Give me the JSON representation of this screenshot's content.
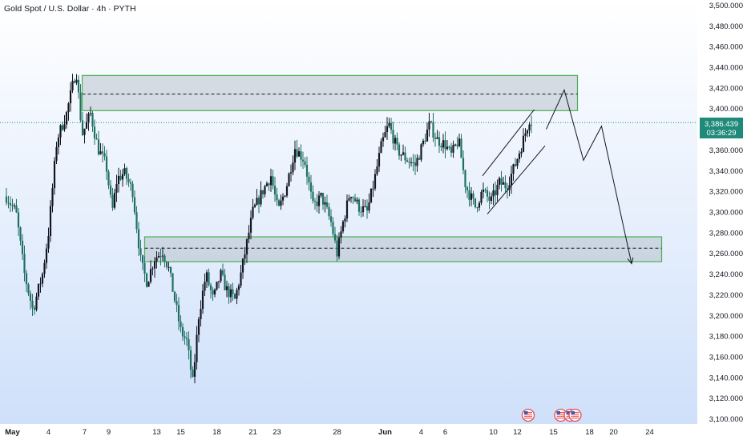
{
  "header": {
    "title": "Gold Spot / U.S. Dollar · 4h · PYTH"
  },
  "price_label": {
    "price": "3,386.439",
    "countdown": "03:36:29"
  },
  "colors": {
    "bullish": "#131722",
    "bearish": "#1f6f62",
    "zone_fill": "#b8c2cc",
    "zone_border": "#4caf50",
    "price_badge": "#1f8a7a",
    "background_top": "#ffffff",
    "background_bottom": "#cfe0fa",
    "projection": "#131722",
    "event_flag": "#e54a50"
  },
  "chart_data": {
    "type": "candlestick",
    "title": "Gold Spot / U.S. Dollar · 4h · PYTH",
    "ylim": [
      3095,
      3505
    ],
    "y_ticks": [
      3100,
      3120,
      3140,
      3160,
      3180,
      3200,
      3220,
      3240,
      3260,
      3280,
      3300,
      3320,
      3340,
      3360,
      3380,
      3400,
      3420,
      3440,
      3460,
      3480,
      3500
    ],
    "y_tick_labels": [
      "3,100.000",
      "3,120.000",
      "3,140.000",
      "3,160.000",
      "3,180.000",
      "3,200.000",
      "3,220.000",
      "3,240.000",
      "3,260.000",
      "3,280.000",
      "3,300.000",
      "3,320.000",
      "3,340.000",
      "3,360.000",
      "3,380.000",
      "3,400.000",
      "3,420.000",
      "3,440.000",
      "3,460.000",
      "3,480.000",
      "3,500.000"
    ],
    "x_domain_days": [
      0,
      55
    ],
    "x_ticks": [
      {
        "day": 0.5,
        "label": "May",
        "bold": true
      },
      {
        "day": 3.5,
        "label": "4",
        "bold": false
      },
      {
        "day": 6.5,
        "label": "7",
        "bold": false
      },
      {
        "day": 8.5,
        "label": "9",
        "bold": false
      },
      {
        "day": 12.5,
        "label": "13",
        "bold": false
      },
      {
        "day": 14.5,
        "label": "15",
        "bold": false
      },
      {
        "day": 17.5,
        "label": "18",
        "bold": false
      },
      {
        "day": 20.5,
        "label": "21",
        "bold": false
      },
      {
        "day": 22.5,
        "label": "23",
        "bold": false
      },
      {
        "day": 27.5,
        "label": "28",
        "bold": false
      },
      {
        "day": 31.5,
        "label": "Jun",
        "bold": true
      },
      {
        "day": 34.5,
        "label": "4",
        "bold": false
      },
      {
        "day": 36.5,
        "label": "6",
        "bold": false
      },
      {
        "day": 40.5,
        "label": "10",
        "bold": false
      },
      {
        "day": 42.5,
        "label": "12",
        "bold": false
      },
      {
        "day": 45.5,
        "label": "15",
        "bold": false
      },
      {
        "day": 48.5,
        "label": "18",
        "bold": false
      },
      {
        "day": 50.5,
        "label": "20",
        "bold": false
      },
      {
        "day": 53.5,
        "label": "24",
        "bold": false
      }
    ],
    "path": [
      [
        0,
        3315
      ],
      [
        0.8,
        3300
      ],
      [
        1.5,
        3240
      ],
      [
        2.2,
        3205
      ],
      [
        3,
        3240
      ],
      [
        3.5,
        3280
      ],
      [
        4.2,
        3370
      ],
      [
        5,
        3395
      ],
      [
        5.8,
        3438
      ],
      [
        6.3,
        3375
      ],
      [
        7,
        3395
      ],
      [
        7.6,
        3362
      ],
      [
        8.3,
        3345
      ],
      [
        8.8,
        3300
      ],
      [
        9.2,
        3332
      ],
      [
        9.8,
        3338
      ],
      [
        10.5,
        3320
      ],
      [
        11.2,
        3250
      ],
      [
        11.7,
        3232
      ],
      [
        12.3,
        3255
      ],
      [
        13,
        3262
      ],
      [
        13.5,
        3245
      ],
      [
        14,
        3215
      ],
      [
        14.5,
        3185
      ],
      [
        15,
        3175
      ],
      [
        15.5,
        3135
      ],
      [
        16,
        3200
      ],
      [
        16.6,
        3240
      ],
      [
        17.2,
        3215
      ],
      [
        17.8,
        3240
      ],
      [
        18.3,
        3225
      ],
      [
        19,
        3215
      ],
      [
        19.5,
        3240
      ],
      [
        20,
        3270
      ],
      [
        20.5,
        3300
      ],
      [
        21.3,
        3320
      ],
      [
        22,
        3335
      ],
      [
        22.6,
        3300
      ],
      [
        23.3,
        3325
      ],
      [
        24,
        3362
      ],
      [
        24.8,
        3350
      ],
      [
        25.5,
        3305
      ],
      [
        26.2,
        3315
      ],
      [
        27,
        3290
      ],
      [
        27.5,
        3260
      ],
      [
        28,
        3290
      ],
      [
        28.6,
        3320
      ],
      [
        29.3,
        3305
      ],
      [
        30,
        3300
      ],
      [
        30.6,
        3330
      ],
      [
        31.2,
        3365
      ],
      [
        31.8,
        3385
      ],
      [
        32.5,
        3360
      ],
      [
        33.2,
        3352
      ],
      [
        34,
        3345
      ],
      [
        34.7,
        3368
      ],
      [
        35.2,
        3385
      ],
      [
        35.8,
        3370
      ],
      [
        36.5,
        3365
      ],
      [
        37,
        3355
      ],
      [
        37.6,
        3370
      ],
      [
        38.2,
        3325
      ],
      [
        39,
        3305
      ],
      [
        39.6,
        3320
      ],
      [
        40.3,
        3310
      ],
      [
        41,
        3328
      ],
      [
        41.6,
        3325
      ],
      [
        42.3,
        3345
      ],
      [
        43,
        3370
      ],
      [
        43.5,
        3390
      ],
      [
        43.8,
        3386.4
      ]
    ],
    "zones": [
      {
        "y_from": 3398,
        "y_to": 3432,
        "x_from": 6.3,
        "x_to": 47.5,
        "dashed_level": 3414
      },
      {
        "y_from": 3252,
        "y_to": 3276,
        "x_from": 11.5,
        "x_to": 54.5,
        "dashed_level": 3265
      }
    ],
    "channel": {
      "upper": [
        [
          39.6,
          3335
        ],
        [
          43.9,
          3399
        ]
      ],
      "lower": [
        [
          40.0,
          3298
        ],
        [
          44.8,
          3364
        ]
      ]
    },
    "projection": [
      [
        44.9,
        3380
      ],
      [
        46.4,
        3418
      ],
      [
        48.0,
        3350
      ],
      [
        49.5,
        3383
      ],
      [
        52.0,
        3250
      ]
    ],
    "current_price": 3386.439,
    "event_flag_days": [
      43.4,
      46.1,
      46.9,
      47.3
    ]
  }
}
